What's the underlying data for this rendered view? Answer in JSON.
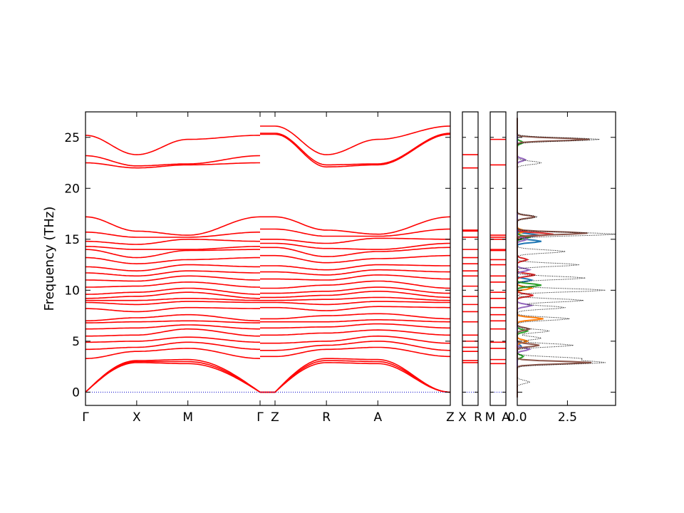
{
  "chart_data": [
    {
      "type": "line",
      "panel": "band-structure",
      "ylabel": "Frequency (THz)",
      "ylim": [
        -1.3,
        27.5
      ],
      "yticks": [
        0,
        5,
        10,
        15,
        20,
        25
      ],
      "x_ticks": [
        "Γ",
        "X",
        "M",
        "Γ",
        "Z",
        "R",
        "A",
        "Z"
      ],
      "segments": [
        {
          "from": "Γ",
          "to": "X",
          "length": 1.0
        },
        {
          "from": "X",
          "to": "M",
          "length": 1.0
        },
        {
          "from": "M",
          "to": "Γ",
          "length": 1.41
        },
        {
          "from": "Z",
          "to": "R",
          "length": 1.0
        },
        {
          "from": "R",
          "to": "A",
          "length": 1.0
        },
        {
          "from": "A",
          "to": "Z",
          "length": 1.41
        }
      ],
      "band_color": "#ff0000",
      "zero_line_color": "#0000cc",
      "bands_at_Gamma": [
        0,
        0,
        0,
        3.3,
        4.2,
        4.9,
        5.5,
        6.2,
        6.8,
        7.0,
        8.2,
        8.8,
        9.0,
        9.2,
        9.6,
        10.3,
        11.0,
        11.7,
        12.3,
        13.2,
        14.0,
        14.3,
        14.8,
        15.7,
        17.2,
        22.5,
        23.2,
        25.2
      ],
      "bands_at_X": [
        2.9,
        3.0,
        3.1,
        4.0,
        4.4,
        5.0,
        5.6,
        6.3,
        6.9,
        7.3,
        7.9,
        8.6,
        9.0,
        9.4,
        9.8,
        10.4,
        10.9,
        11.4,
        11.9,
        12.6,
        13.2,
        14.0,
        14.5,
        15.2,
        15.8,
        22.0,
        22.2,
        23.3
      ],
      "bands_at_M": [
        2.8,
        3.0,
        3.2,
        4.3,
        4.9,
        5.4,
        6.2,
        6.6,
        7.0,
        7.6,
        8.3,
        8.9,
        9.2,
        9.8,
        10.2,
        10.8,
        11.4,
        11.9,
        12.5,
        13.0,
        13.9,
        14.0,
        15.0,
        15.2,
        15.4,
        22.3,
        22.4,
        24.8
      ],
      "bands_at_Z": [
        0,
        0,
        0,
        3.5,
        4.1,
        4.8,
        5.6,
        6.3,
        6.9,
        7.2,
        8.3,
        8.8,
        9.0,
        9.3,
        9.7,
        10.2,
        11.1,
        11.8,
        12.4,
        13.4,
        14.2,
        14.6,
        15.0,
        16.0,
        17.2,
        25.3,
        25.4,
        26.1
      ],
      "bands_at_R": [
        2.9,
        3.1,
        3.3,
        4.2,
        4.6,
        5.0,
        5.8,
        6.4,
        6.9,
        7.5,
        8.0,
        8.6,
        9.1,
        9.5,
        9.9,
        10.5,
        11.0,
        11.5,
        12.0,
        12.7,
        13.3,
        14.1,
        14.6,
        15.3,
        15.9,
        22.1,
        22.3,
        23.3
      ],
      "bands_at_A": [
        2.8,
        3.0,
        3.2,
        4.4,
        5.0,
        5.5,
        6.1,
        6.7,
        7.1,
        7.7,
        8.4,
        8.9,
        9.3,
        9.9,
        10.3,
        10.9,
        11.5,
        12.0,
        12.5,
        13.1,
        13.8,
        14.0,
        15.1,
        15.3,
        15.5,
        22.3,
        22.4,
        24.8
      ]
    },
    {
      "type": "line",
      "panel": "path-X-R",
      "x_ticks": [
        "X",
        "R"
      ],
      "levels": [
        2.9,
        3.1,
        4.0,
        4.4,
        5.0,
        5.6,
        6.9,
        7.9,
        8.6,
        9.4,
        10.4,
        11.4,
        11.9,
        12.6,
        13.2,
        14.0,
        15.2,
        15.8,
        15.9,
        22.0,
        23.3
      ]
    },
    {
      "type": "line",
      "panel": "path-M-A",
      "x_ticks": [
        "M",
        "A"
      ],
      "levels": [
        2.8,
        3.2,
        4.3,
        4.9,
        6.2,
        7.0,
        7.6,
        8.3,
        9.2,
        9.8,
        10.8,
        11.4,
        12.5,
        13.0,
        13.9,
        14.0,
        15.0,
        15.2,
        15.4,
        22.3,
        24.8
      ]
    },
    {
      "type": "line",
      "panel": "dos",
      "x_ticks": [
        "0.0",
        "2.5"
      ],
      "xlim": [
        0,
        4.9
      ],
      "total_color": "#000000",
      "series_colors": [
        "#1f77b4",
        "#ff7f0e",
        "#2ca02c",
        "#d62728",
        "#9467bd",
        "#8c564b"
      ],
      "total_peaks": [
        [
          1.0,
          0.6
        ],
        [
          2.9,
          4.3
        ],
        [
          3.3,
          3.1
        ],
        [
          4.6,
          2.8
        ],
        [
          5.3,
          1.2
        ],
        [
          6.0,
          1.6
        ],
        [
          7.2,
          2.6
        ],
        [
          8.3,
          2.4
        ],
        [
          9.0,
          3.3
        ],
        [
          10.0,
          4.4
        ],
        [
          11.2,
          3.4
        ],
        [
          12.5,
          3.1
        ],
        [
          13.8,
          2.4
        ],
        [
          15.5,
          4.9
        ],
        [
          17.2,
          1.0
        ],
        [
          22.5,
          1.2
        ],
        [
          24.8,
          4.1
        ]
      ],
      "partial_peaks": [
        {
          "series": 0,
          "peaks": [
            [
              4.5,
              0.2
            ],
            [
              11.0,
              0.7
            ],
            [
              14.8,
              1.2
            ],
            [
              15.4,
              1.1
            ]
          ]
        },
        {
          "series": 1,
          "peaks": [
            [
              5.0,
              0.5
            ],
            [
              7.2,
              1.3
            ],
            [
              10.2,
              0.7
            ],
            [
              15.8,
              0.4
            ]
          ]
        },
        {
          "series": 2,
          "peaks": [
            [
              3.5,
              0.3
            ],
            [
              6.0,
              0.5
            ],
            [
              10.5,
              1.2
            ],
            [
              15.2,
              0.6
            ],
            [
              24.5,
              0.3
            ]
          ]
        },
        {
          "series": 3,
          "peaks": [
            [
              9.5,
              0.8
            ],
            [
              11.5,
              0.9
            ],
            [
              13.0,
              0.5
            ],
            [
              15.5,
              1.8
            ]
          ]
        },
        {
          "series": 4,
          "peaks": [
            [
              4.2,
              0.6
            ],
            [
              8.5,
              0.7
            ],
            [
              12.0,
              0.6
            ],
            [
              15.0,
              0.5
            ],
            [
              22.8,
              0.4
            ]
          ]
        },
        {
          "series": 5,
          "peaks": [
            [
              2.9,
              3.7
            ],
            [
              4.6,
              1.1
            ],
            [
              6.2,
              0.6
            ],
            [
              15.6,
              3.5
            ],
            [
              17.2,
              0.9
            ],
            [
              24.8,
              3.6
            ]
          ]
        }
      ]
    }
  ]
}
